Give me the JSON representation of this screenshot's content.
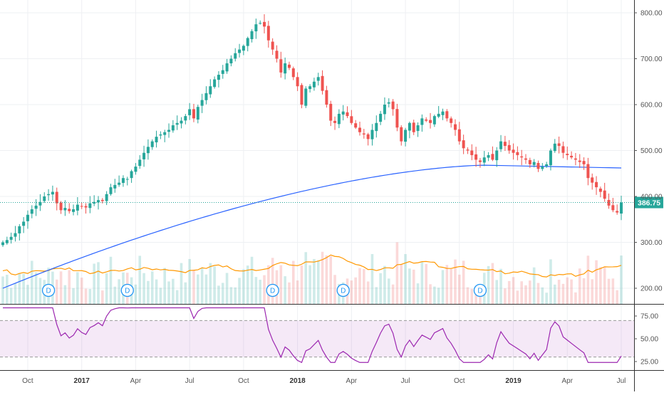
{
  "chart_data": {
    "type": "candlestick",
    "price_axis": {
      "ticks": [
        {
          "value": 200,
          "label": "200.00"
        },
        {
          "value": 300,
          "label": "300.00"
        },
        {
          "value": 400,
          "label": "400.00"
        },
        {
          "value": 500,
          "label": "500.00"
        },
        {
          "value": 600,
          "label": "600.00"
        },
        {
          "value": 700,
          "label": "700.00"
        },
        {
          "value": 800,
          "label": "800.00"
        }
      ],
      "range": [
        180,
        810
      ]
    },
    "last_price": {
      "value": 386.75,
      "label": "386.75",
      "color": "#26a69a"
    },
    "time_axis": [
      {
        "label": "Oct",
        "index": 6
      },
      {
        "label": "2017",
        "index": 19,
        "major": true
      },
      {
        "label": "Apr",
        "index": 32
      },
      {
        "label": "Jul",
        "index": 45
      },
      {
        "label": "Oct",
        "index": 58
      },
      {
        "label": "2018",
        "index": 71,
        "major": true
      },
      {
        "label": "Apr",
        "index": 84
      },
      {
        "label": "Jul",
        "index": 97
      },
      {
        "label": "Oct",
        "index": 110
      },
      {
        "label": "2019",
        "index": 123,
        "major": true
      },
      {
        "label": "Apr",
        "index": 136
      },
      {
        "label": "Jul",
        "index": 149
      }
    ],
    "dividend_markers": [
      {
        "label": "D",
        "index": 11
      },
      {
        "label": "D",
        "index": 30
      },
      {
        "label": "D",
        "index": 65
      },
      {
        "label": "D",
        "index": 82
      },
      {
        "label": "D",
        "index": 115
      }
    ],
    "closes": [
      300,
      305,
      312,
      320,
      335,
      345,
      360,
      372,
      380,
      388,
      400,
      405,
      410,
      385,
      370,
      375,
      368,
      372,
      382,
      378,
      376,
      385,
      388,
      392,
      390,
      405,
      420,
      425,
      430,
      440,
      438,
      455,
      465,
      480,
      495,
      508,
      520,
      530,
      535,
      540,
      545,
      555,
      560,
      565,
      575,
      590,
      570,
      595,
      610,
      625,
      640,
      655,
      665,
      675,
      690,
      700,
      712,
      720,
      728,
      745,
      760,
      775,
      778,
      770,
      740,
      720,
      700,
      670,
      690,
      680,
      660,
      640,
      600,
      635,
      640,
      650,
      660,
      630,
      600,
      565,
      560,
      580,
      585,
      575,
      560,
      550,
      540,
      535,
      525,
      545,
      560,
      580,
      600,
      605,
      590,
      550,
      520,
      545,
      560,
      540,
      555,
      570,
      565,
      560,
      575,
      580,
      585,
      570,
      560,
      545,
      520,
      505,
      500,
      490,
      480,
      475,
      485,
      490,
      480,
      500,
      520,
      510,
      500,
      495,
      490,
      485,
      480,
      470,
      475,
      460,
      465,
      470,
      500,
      515,
      510,
      495,
      490,
      485,
      480,
      475,
      470,
      440,
      430,
      420,
      410,
      395,
      380,
      370,
      365,
      386.75
    ],
    "ma_long": {
      "color": "#2962ff",
      "start": 200,
      "end": 462
    },
    "volume_avg": {
      "color": "#ff9800"
    },
    "rsi": {
      "ticks": [
        {
          "value": 25,
          "label": "25.00"
        },
        {
          "value": 50,
          "label": "50.00"
        },
        {
          "value": 75,
          "label": "75.00"
        }
      ],
      "band": [
        30,
        70
      ],
      "line_color": "#9c27b0",
      "fill_color": "#9c27b01a"
    },
    "colors": {
      "up": "#26a69a",
      "down": "#ef5350"
    }
  }
}
